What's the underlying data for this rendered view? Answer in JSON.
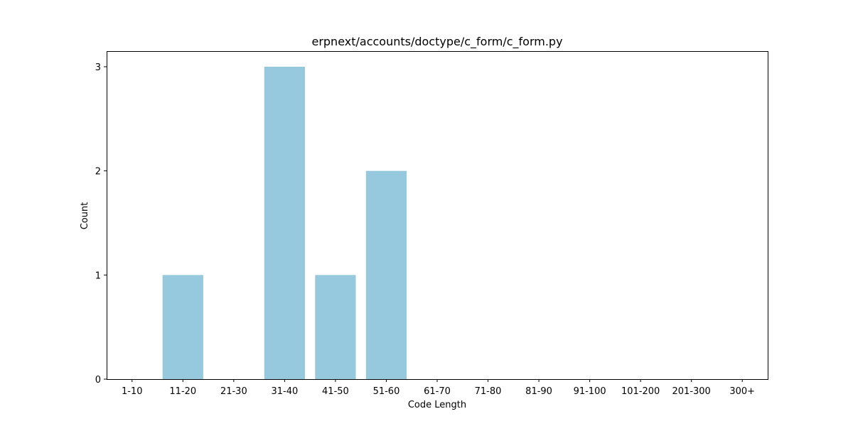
{
  "chart_data": {
    "type": "bar",
    "title": "erpnext/accounts/doctype/c_form/c_form.py",
    "xlabel": "Code Length",
    "ylabel": "Count",
    "categories": [
      "1-10",
      "11-20",
      "21-30",
      "31-40",
      "41-50",
      "51-60",
      "61-70",
      "71-80",
      "81-90",
      "91-100",
      "101-200",
      "201-300",
      "300+"
    ],
    "values": [
      0,
      1,
      0,
      3,
      1,
      2,
      0,
      0,
      0,
      0,
      0,
      0,
      0
    ],
    "ylim": [
      0,
      3.15
    ],
    "yticks": [
      0,
      1,
      2,
      3
    ],
    "grid": false,
    "colors": {
      "bar": "#96c9dd",
      "axis": "#000000",
      "background": "#ffffff"
    }
  }
}
